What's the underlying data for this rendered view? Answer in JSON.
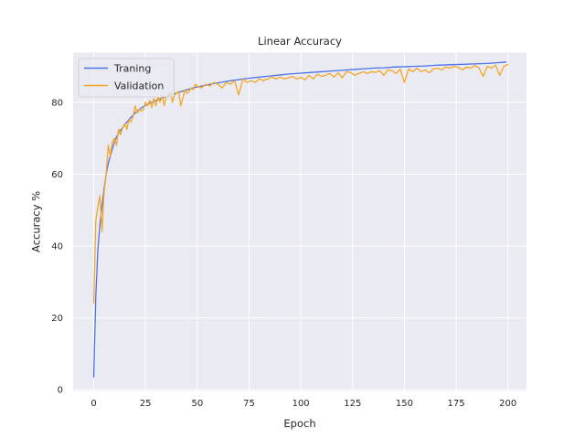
{
  "chart_data": {
    "type": "line",
    "title": "Linear Accuracy",
    "xlabel": "Epoch",
    "ylabel": "Accuracy %",
    "xlim": [
      -9.95,
      208.95
    ],
    "ylim": [
      -0.3,
      93.8
    ],
    "xticks": [
      0,
      25,
      50,
      75,
      100,
      125,
      150,
      175,
      200
    ],
    "yticks": [
      0,
      20,
      40,
      60,
      80
    ],
    "grid": true,
    "legend_position": "top-left",
    "background": "#EAEAF2",
    "series": [
      {
        "name": "Traning",
        "color": "#4C72E8",
        "x": [
          0,
          1,
          2,
          3,
          4,
          5,
          6,
          7,
          8,
          9,
          10,
          12,
          14,
          16,
          18,
          20,
          22,
          24,
          26,
          28,
          30,
          33,
          36,
          40,
          44,
          48,
          52,
          56,
          60,
          65,
          70,
          75,
          80,
          85,
          90,
          95,
          100,
          105,
          110,
          115,
          120,
          125,
          130,
          135,
          140,
          145,
          150,
          155,
          160,
          165,
          170,
          175,
          180,
          185,
          190,
          195,
          199
        ],
        "values": [
          3.5,
          26,
          39,
          46,
          51,
          56,
          60,
          63,
          65,
          67,
          69,
          71.5,
          73,
          74.5,
          75.8,
          77,
          78,
          78.8,
          79.4,
          80,
          80.5,
          81.2,
          81.8,
          82.6,
          83.3,
          84,
          84.5,
          85,
          85.4,
          85.9,
          86.3,
          86.7,
          87,
          87.3,
          87.6,
          87.9,
          88.1,
          88.3,
          88.5,
          88.7,
          88.9,
          89.1,
          89.3,
          89.5,
          89.6,
          89.8,
          89.9,
          90,
          90.1,
          90.3,
          90.4,
          90.5,
          90.6,
          90.7,
          90.8,
          91,
          91.2
        ]
      },
      {
        "name": "Validation",
        "color": "#F5A623",
        "x": [
          0,
          1,
          2,
          3,
          4,
          5,
          6,
          7,
          8,
          9,
          10,
          11,
          12,
          13,
          14,
          15,
          16,
          17,
          18,
          19,
          20,
          21,
          22,
          23,
          24,
          25,
          26,
          27,
          28,
          29,
          30,
          31,
          32,
          33,
          34,
          35,
          36,
          37,
          38,
          39,
          40,
          41,
          42,
          43,
          44,
          45,
          46,
          47,
          48,
          49,
          50,
          52,
          54,
          56,
          58,
          60,
          62,
          64,
          66,
          68,
          70,
          72,
          74,
          76,
          78,
          80,
          82,
          84,
          86,
          88,
          90,
          92,
          94,
          96,
          98,
          100,
          102,
          104,
          106,
          108,
          110,
          112,
          114,
          116,
          118,
          120,
          122,
          124,
          126,
          128,
          130,
          132,
          134,
          136,
          138,
          140,
          142,
          144,
          146,
          148,
          150,
          152,
          154,
          156,
          158,
          160,
          162,
          164,
          166,
          168,
          170,
          172,
          174,
          176,
          178,
          180,
          182,
          184,
          186,
          188,
          190,
          192,
          194,
          196,
          198,
          200
        ],
        "values": [
          24,
          47,
          51,
          54,
          44,
          55,
          60,
          68,
          65,
          69,
          70,
          68,
          72.5,
          71,
          73,
          74,
          72.5,
          75,
          74.5,
          76,
          79,
          77,
          78,
          77.5,
          78,
          80,
          79,
          80.5,
          78.5,
          81,
          79,
          81.5,
          80,
          82,
          79,
          81.5,
          82,
          83,
          80,
          82,
          82.5,
          83,
          79,
          81,
          83.5,
          82.5,
          83,
          84,
          83.5,
          85,
          84.5,
          84,
          85,
          84.5,
          85.5,
          85,
          84,
          85.5,
          85,
          86,
          82,
          86.5,
          85.5,
          86,
          85.5,
          86.5,
          86,
          86.5,
          87,
          86.5,
          87,
          86.5,
          86.8,
          87.2,
          86.5,
          87,
          86.2,
          87.5,
          86.5,
          87.8,
          87.2,
          87.5,
          88,
          87,
          88.2,
          86.8,
          88.5,
          88.3,
          87.5,
          88,
          88.5,
          88,
          88.5,
          88.3,
          88.8,
          87.5,
          89,
          88.8,
          88,
          89.2,
          85.5,
          89.3,
          88.5,
          89.5,
          88.5,
          89,
          88.2,
          89.3,
          89.5,
          89,
          89.8,
          89.5,
          90,
          89.7,
          89,
          89.8,
          89.5,
          90.2,
          89.6,
          87.2,
          90,
          89.5,
          90.3,
          87.5,
          90,
          90.5
        ]
      }
    ]
  }
}
